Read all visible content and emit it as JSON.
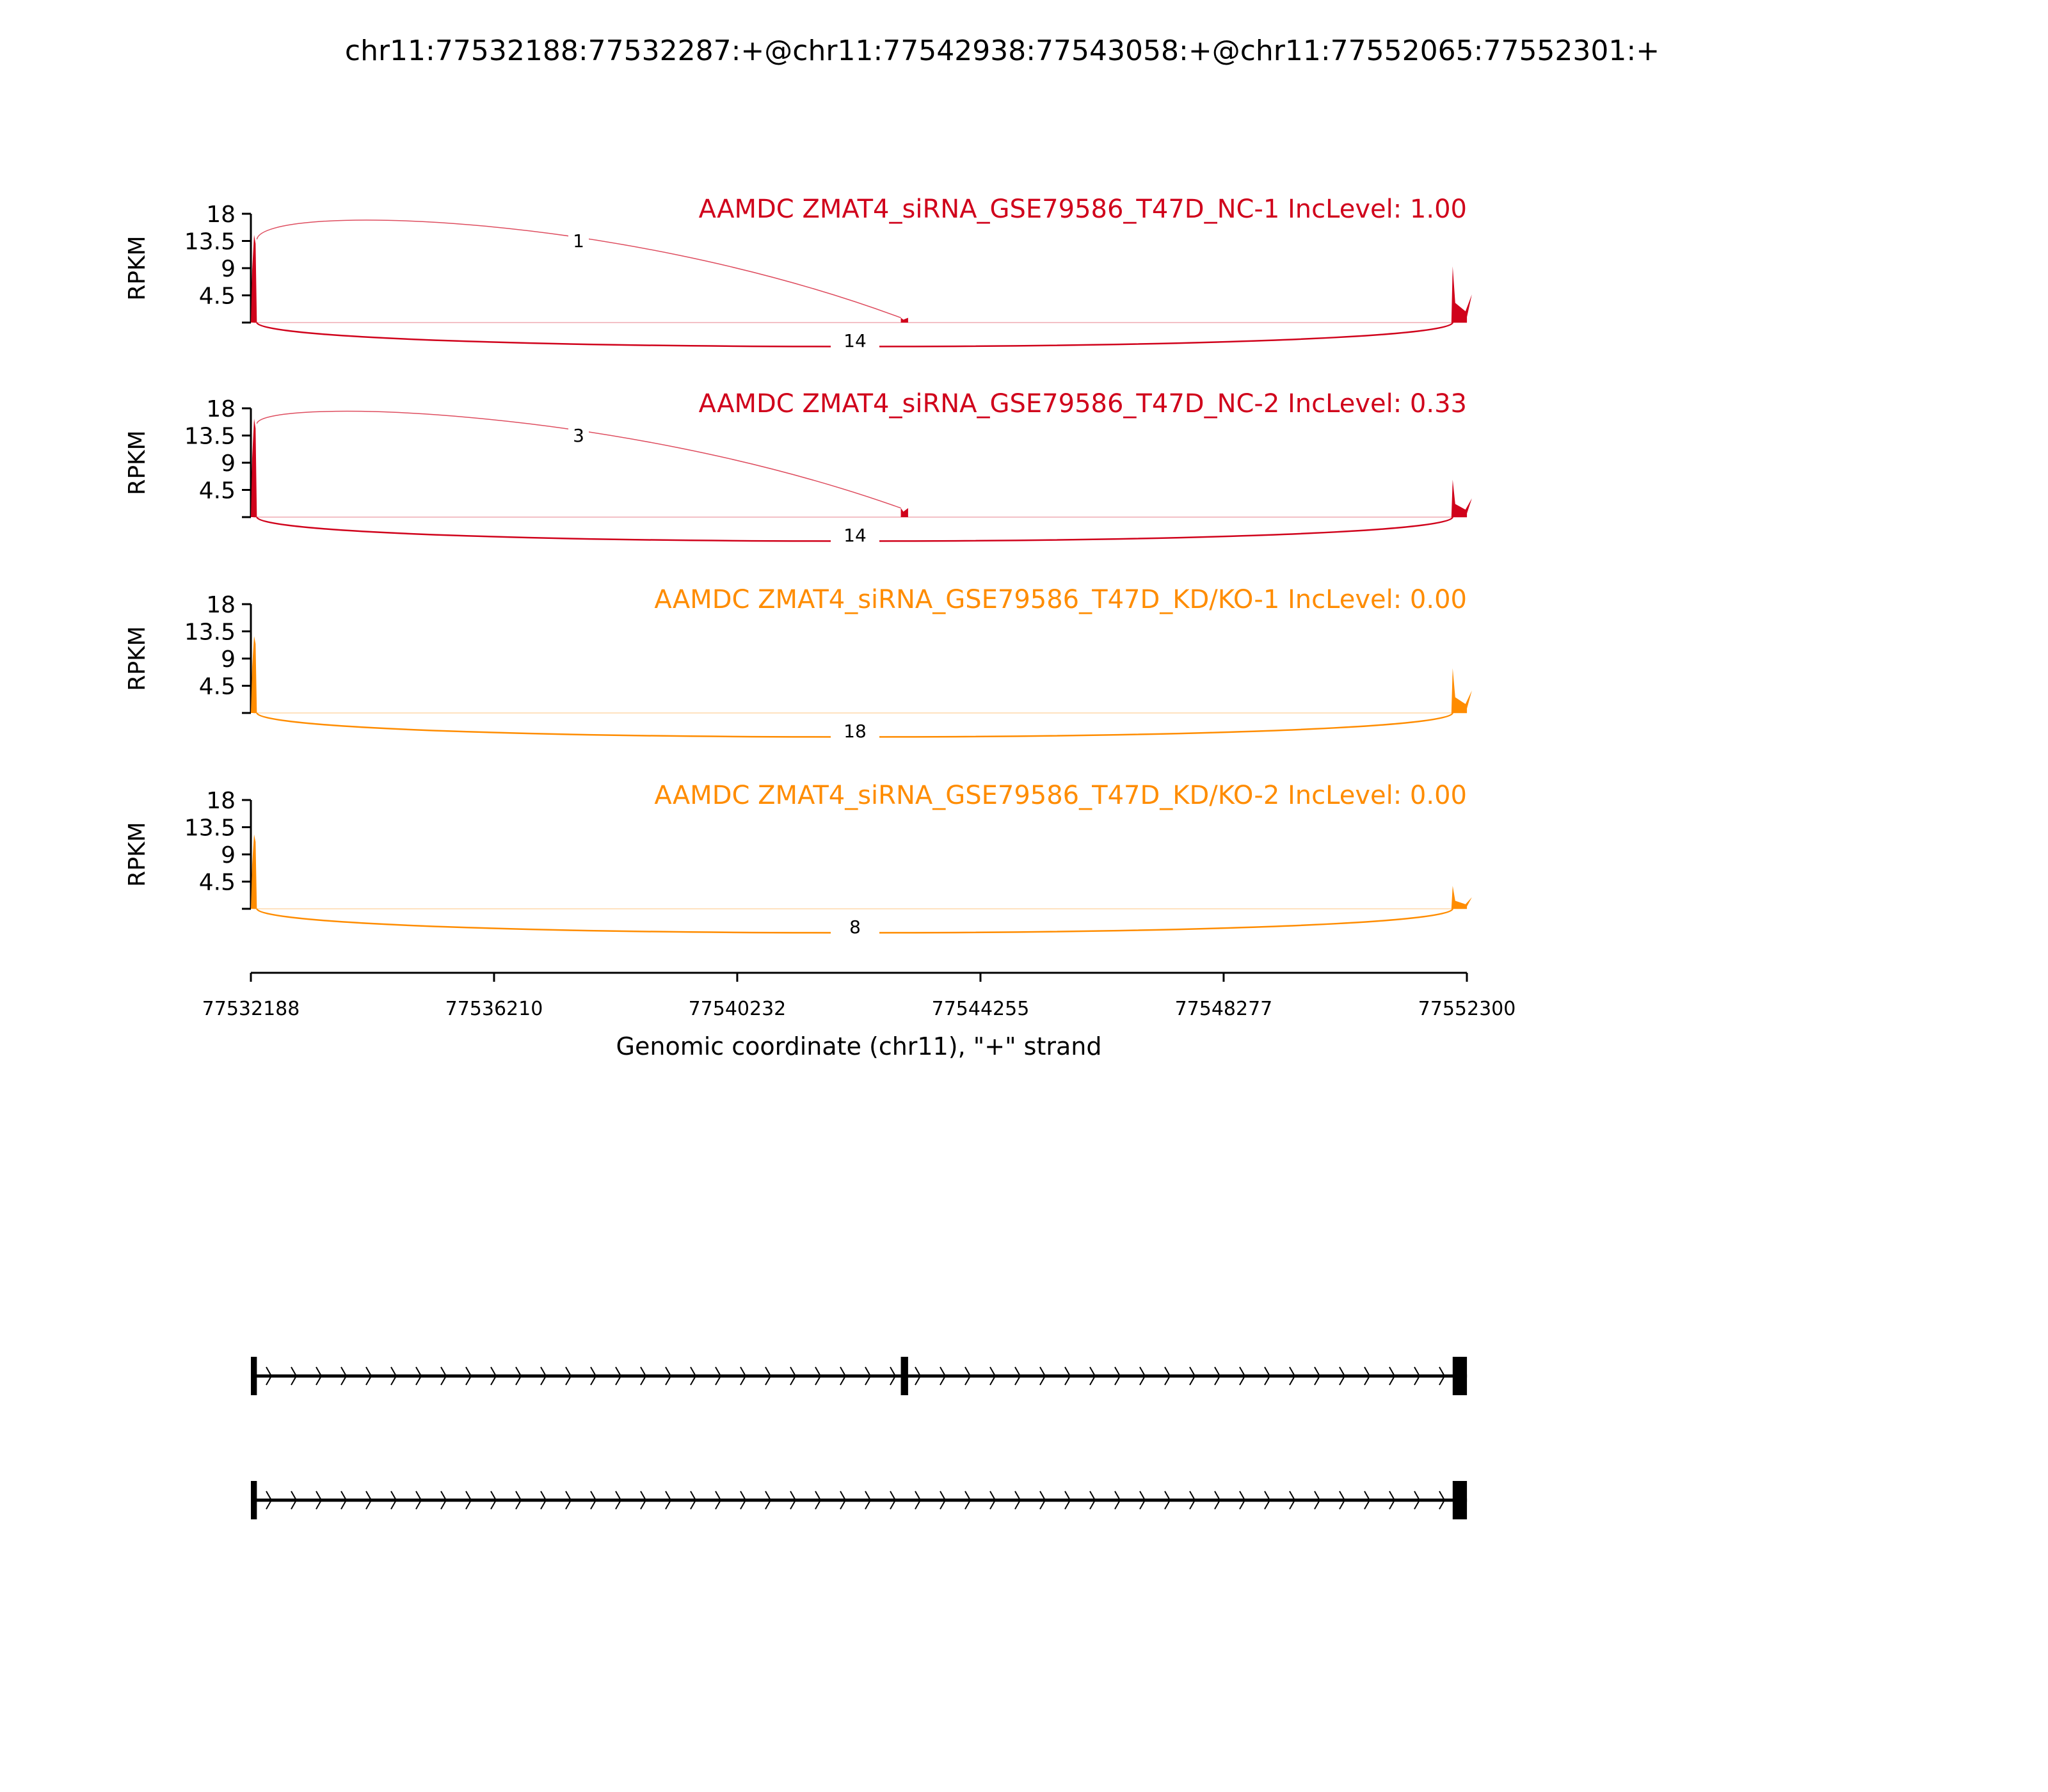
{
  "chart_data": {
    "type": "area",
    "title": "chr11:77532188:77532287:+@chr11:77542938:77543058:+@chr11:77552065:77552301:+",
    "xlabel": "Genomic coordinate (chr11), \"+\" strand",
    "ylabel": "RPKM",
    "xlim": [
      77532188,
      77552300
    ],
    "xticks": [
      "77532188",
      "77536210",
      "77540232",
      "77544255",
      "77548277",
      "77552300"
    ],
    "ylim": [
      0,
      18
    ],
    "yticks": [
      "4.5",
      "9",
      "13.5",
      "18"
    ],
    "grid": false,
    "exons": [
      [
        77532188,
        77532287
      ],
      [
        77542938,
        77543058
      ],
      [
        77552065,
        77552301
      ]
    ],
    "panels": [
      {
        "title": "AAMDC ZMAT4_siRNA_GSE79586_T47D_NC-1 IncLevel: 1.00",
        "color": "#d0021b",
        "coverage_peaks": [
          14.5,
          0.8,
          9.3
        ],
        "inclusion_junction": "1",
        "skipping_junction": "14"
      },
      {
        "title": "AAMDC ZMAT4_siRNA_GSE79586_T47D_NC-2 IncLevel: 0.33",
        "color": "#d0021b",
        "coverage_peaks": [
          16.3,
          1.5,
          6.2
        ],
        "inclusion_junction": "3",
        "skipping_junction": "14"
      },
      {
        "title": "AAMDC ZMAT4_siRNA_GSE79586_T47D_KD/KO-1 IncLevel: 0.00",
        "color": "#ff8c00",
        "coverage_peaks": [
          12.7,
          0,
          7.4
        ],
        "inclusion_junction": null,
        "skipping_junction": "18"
      },
      {
        "title": "AAMDC ZMAT4_siRNA_GSE79586_T47D_KD/KO-2 IncLevel: 0.00",
        "color": "#ff8c00",
        "coverage_peaks": [
          12.3,
          0,
          3.8
        ],
        "inclusion_junction": null,
        "skipping_junction": "8"
      }
    ],
    "gene_models": [
      {
        "exons": [
          [
            77532188,
            77532287
          ],
          [
            77542938,
            77543058
          ],
          [
            77552065,
            77552301
          ]
        ]
      },
      {
        "exons": [
          [
            77532188,
            77532287
          ],
          [
            77552065,
            77552301
          ]
        ]
      }
    ]
  }
}
